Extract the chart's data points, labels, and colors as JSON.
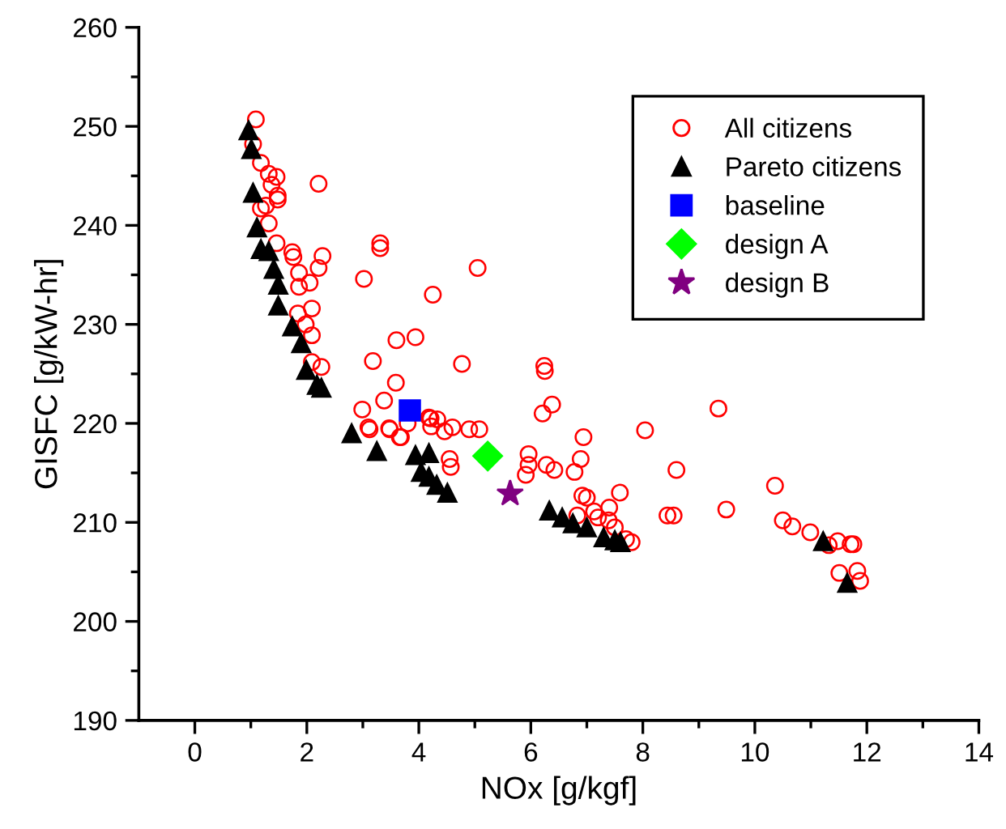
{
  "chart_data": {
    "type": "scatter",
    "xlabel": "NOx [g/kgf]",
    "ylabel": "GISFC [g/kW-hr]",
    "xlim": [
      -1,
      14
    ],
    "ylim": [
      190,
      260
    ],
    "xticks": [
      0,
      {
        "value": 1,
        "label": null
      },
      2,
      {
        "value": 3,
        "label": null
      },
      4,
      {
        "value": 5,
        "label": null
      },
      6,
      {
        "value": 7,
        "label": null
      },
      8,
      {
        "value": 9,
        "label": null
      },
      10,
      {
        "value": 11,
        "label": null
      },
      12,
      {
        "value": 13,
        "label": null
      },
      14
    ],
    "yticks": [
      190,
      {
        "value": 195,
        "label": null
      },
      200,
      {
        "value": 205,
        "label": null
      },
      210,
      {
        "value": 215,
        "label": null
      },
      220,
      {
        "value": 225,
        "label": null
      },
      230,
      {
        "value": 235,
        "label": null
      },
      240,
      {
        "value": 245,
        "label": null
      },
      250,
      {
        "value": 255,
        "label": null
      },
      260
    ],
    "grid": false,
    "legend": "top right",
    "series": [
      {
        "name": "All citizens",
        "color": "#ff0000",
        "marker": "circle",
        "x": [
          1.09,
          1.04,
          1.18,
          1.32,
          1.46,
          1.37,
          1.48,
          1.48,
          2.21,
          1.18,
          1.27,
          1.32,
          1.46,
          1.74,
          2.28,
          1.76,
          2.21,
          1.86,
          2.05,
          1.86,
          3.31,
          3.31,
          3.02,
          4.25,
          2.09,
          1.84,
          1.98,
          2.09,
          3.6,
          3.94,
          3.18,
          2.09,
          2.26,
          3.59,
          2.99,
          3.38,
          4.21,
          3.12,
          3.48,
          3.8,
          3.66,
          5.05,
          4.77,
          6.24,
          6.25,
          6.38,
          6.21,
          8.04,
          4.18,
          4.33,
          4.6,
          4.9,
          5.08,
          3.1,
          3.47,
          3.68,
          4.46,
          4.22,
          4.55,
          4.57,
          5.96,
          5.96,
          5.91,
          6.28,
          6.42,
          6.78,
          6.89,
          6.94,
          6.92,
          7.59,
          6.83,
          7.13,
          7.39,
          9.35,
          8.6,
          8.44,
          8.55,
          9.49,
          10.36,
          10.5,
          10.67,
          10.99,
          11.32,
          11.48,
          11.71,
          11.76,
          11.51,
          11.83,
          11.88,
          7.2,
          7.5,
          7.7,
          7.8,
          7.0,
          7.4
        ],
        "values": [
          250.7,
          248.2,
          246.3,
          245.2,
          244.9,
          244.1,
          243.0,
          242.6,
          244.2,
          241.7,
          242.0,
          240.2,
          238.2,
          237.3,
          236.9,
          236.8,
          235.7,
          235.2,
          234.2,
          233.8,
          238.2,
          237.7,
          234.6,
          233.0,
          231.6,
          231.1,
          230.0,
          228.9,
          228.4,
          228.7,
          226.3,
          226.2,
          225.7,
          224.1,
          221.4,
          222.3,
          220.5,
          219.4,
          219.4,
          220.0,
          218.6,
          235.7,
          226.0,
          225.8,
          225.3,
          221.9,
          221.0,
          219.3,
          220.6,
          220.4,
          219.6,
          219.4,
          219.4,
          219.6,
          219.5,
          218.6,
          219.2,
          219.7,
          216.4,
          215.6,
          216.9,
          215.8,
          214.8,
          215.8,
          215.3,
          215.1,
          216.4,
          218.6,
          212.7,
          213.0,
          210.7,
          211.1,
          210.2,
          221.5,
          215.3,
          210.7,
          210.7,
          211.3,
          213.7,
          210.2,
          209.6,
          209.0,
          207.7,
          208.1,
          207.8,
          207.8,
          204.9,
          205.1,
          204.1,
          210.5,
          209.5,
          208.3,
          208.0,
          212.5,
          211.5
        ]
      },
      {
        "name": "Pareto citizens",
        "color": "#000000",
        "marker": "triangle",
        "x": [
          0.96,
          1.01,
          1.04,
          1.11,
          1.18,
          1.32,
          1.41,
          1.49,
          1.49,
          1.74,
          1.9,
          1.99,
          2.18,
          2.26,
          2.8,
          3.25,
          3.94,
          4.18,
          4.04,
          4.18,
          4.32,
          4.51,
          6.33,
          6.56,
          6.75,
          7.0,
          7.3,
          7.5,
          7.6,
          11.22,
          11.65
        ],
        "values": [
          249.6,
          247.7,
          243.3,
          239.8,
          237.6,
          237.4,
          235.6,
          234.0,
          231.9,
          229.8,
          228.1,
          225.4,
          223.9,
          223.6,
          219.0,
          217.2,
          216.8,
          217.0,
          215.1,
          214.6,
          213.8,
          213.0,
          211.2,
          210.5,
          209.9,
          209.5,
          208.5,
          208.2,
          208.0,
          208.1,
          203.9
        ]
      },
      {
        "name": "baseline",
        "color": "#0000ff",
        "marker": "square",
        "x": [
          3.84
        ],
        "values": [
          221.3
        ]
      },
      {
        "name": "design A",
        "color": "#00ff00",
        "marker": "diamond",
        "x": [
          5.23
        ],
        "values": [
          216.7
        ]
      },
      {
        "name": "design B",
        "color": "#800080",
        "marker": "star",
        "x": [
          5.63
        ],
        "values": [
          212.9
        ]
      }
    ]
  }
}
